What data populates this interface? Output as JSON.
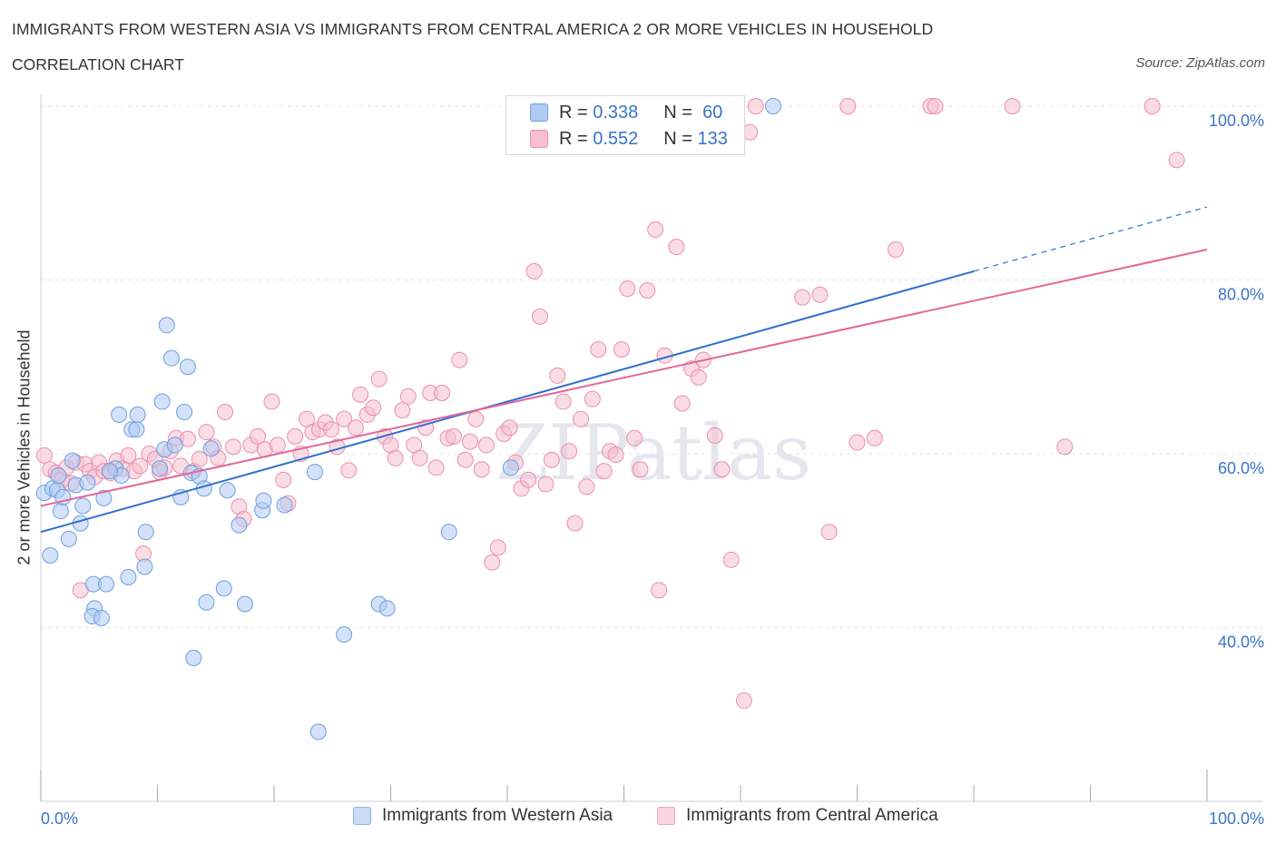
{
  "title": "IMMIGRANTS FROM WESTERN ASIA VS IMMIGRANTS FROM CENTRAL AMERICA 2 OR MORE VEHICLES IN HOUSEHOLD",
  "subtitle": "CORRELATION CHART",
  "source": "Source: ZipAtlas.com",
  "watermark": "ZIPatlas",
  "legend": {
    "western_asia": {
      "r_label": "R =",
      "r": "0.338",
      "n_label": "N =",
      "n": "60"
    },
    "central_america": {
      "r_label": "R =",
      "r": "0.552",
      "n_label": "N =",
      "n": "133"
    }
  },
  "bottom_legend": {
    "western_asia": "Immigrants from Western Asia",
    "central_america": "Immigrants from Central America"
  },
  "colors": {
    "blue_fill": "#aecbf2",
    "blue_stroke": "#6f9ee0",
    "blue_line": "#2f6fce",
    "pink_fill": "#f6c0d0",
    "pink_stroke": "#ec8fac",
    "pink_line": "#e2679a",
    "tick_label": "#3a74c8",
    "grid": "#e4e4e4"
  },
  "chart_data": {
    "type": "scatter",
    "xlabel": "",
    "ylabel": "2 or more Vehicles in Household",
    "xlim": [
      0,
      100
    ],
    "ylim": [
      20,
      100
    ],
    "x_tick_labels": [
      "0.0%",
      "100.0%"
    ],
    "y_ticks": [
      40,
      60,
      80,
      100
    ],
    "y_tick_labels": [
      "40.0%",
      "60.0%",
      "80.0%",
      "100.0%"
    ],
    "grid": true,
    "series": [
      {
        "name": "Immigrants from Western Asia",
        "color": "#aecbf2",
        "trend": {
          "x0": 0,
          "y0": 51.0,
          "x1": 80,
          "y1": 81.0,
          "dash_to": 100,
          "dash_y": 88.4
        },
        "points": [
          [
            0.3,
            55.5
          ],
          [
            0.8,
            48.3
          ],
          [
            1.0,
            56.0
          ],
          [
            1.4,
            55.8
          ],
          [
            1.7,
            53.4
          ],
          [
            1.9,
            55.0
          ],
          [
            2.4,
            50.2
          ],
          [
            2.7,
            59.2
          ],
          [
            3.0,
            56.4
          ],
          [
            3.4,
            52.0
          ],
          [
            3.6,
            54.0
          ],
          [
            4.0,
            56.7
          ],
          [
            4.5,
            45.0
          ],
          [
            4.6,
            42.2
          ],
          [
            4.4,
            41.3
          ],
          [
            5.2,
            41.1
          ],
          [
            5.4,
            54.9
          ],
          [
            5.6,
            45.0
          ],
          [
            6.4,
            58.3
          ],
          [
            6.7,
            64.5
          ],
          [
            6.9,
            57.5
          ],
          [
            7.5,
            45.8
          ],
          [
            7.8,
            62.8
          ],
          [
            8.2,
            62.8
          ],
          [
            8.3,
            64.5
          ],
          [
            8.9,
            47.0
          ],
          [
            9.0,
            51.0
          ],
          [
            10.2,
            58.3
          ],
          [
            10.4,
            66.0
          ],
          [
            10.6,
            60.5
          ],
          [
            10.8,
            74.8
          ],
          [
            11.2,
            71.0
          ],
          [
            11.5,
            61.0
          ],
          [
            12.0,
            55.0
          ],
          [
            12.3,
            64.8
          ],
          [
            12.6,
            70.0
          ],
          [
            12.9,
            57.8
          ],
          [
            13.1,
            36.5
          ],
          [
            13.6,
            57.4
          ],
          [
            14.0,
            56.0
          ],
          [
            14.2,
            42.9
          ],
          [
            14.6,
            60.6
          ],
          [
            15.7,
            44.5
          ],
          [
            16.0,
            55.8
          ],
          [
            17.0,
            51.8
          ],
          [
            17.5,
            42.7
          ],
          [
            19.0,
            53.5
          ],
          [
            19.1,
            54.6
          ],
          [
            20.9,
            54.1
          ],
          [
            23.5,
            57.9
          ],
          [
            23.8,
            28.0
          ],
          [
            26.0,
            39.2
          ],
          [
            29.0,
            42.7
          ],
          [
            29.7,
            42.2
          ],
          [
            35.0,
            51.0
          ],
          [
            40.3,
            58.4
          ],
          [
            42.5,
            100.0
          ],
          [
            62.8,
            100.0
          ],
          [
            1.5,
            57.5
          ],
          [
            5.9,
            58.0
          ]
        ]
      },
      {
        "name": "Immigrants from Central America",
        "color": "#f6c0d0",
        "trend": {
          "x0": 0,
          "y0": 54.0,
          "x1": 100,
          "y1": 83.5
        },
        "points": [
          [
            0.3,
            59.8
          ],
          [
            0.8,
            58.2
          ],
          [
            1.3,
            57.8
          ],
          [
            1.8,
            57.0
          ],
          [
            2.2,
            58.4
          ],
          [
            2.6,
            56.6
          ],
          [
            3.0,
            59.0
          ],
          [
            3.4,
            44.3
          ],
          [
            3.8,
            58.8
          ],
          [
            4.2,
            58.0
          ],
          [
            4.6,
            57.3
          ],
          [
            5.0,
            59.0
          ],
          [
            5.4,
            58.0
          ],
          [
            6.0,
            57.8
          ],
          [
            6.5,
            59.2
          ],
          [
            7.0,
            58.3
          ],
          [
            7.5,
            59.8
          ],
          [
            8.0,
            58.0
          ],
          [
            8.5,
            58.6
          ],
          [
            8.8,
            48.5
          ],
          [
            9.3,
            60.0
          ],
          [
            9.8,
            59.4
          ],
          [
            10.2,
            57.9
          ],
          [
            10.6,
            58.4
          ],
          [
            11.1,
            60.3
          ],
          [
            11.6,
            61.8
          ],
          [
            12.0,
            58.6
          ],
          [
            12.6,
            61.7
          ],
          [
            13.1,
            58.0
          ],
          [
            13.6,
            59.4
          ],
          [
            14.2,
            62.5
          ],
          [
            14.8,
            60.8
          ],
          [
            15.2,
            59.5
          ],
          [
            15.8,
            64.8
          ],
          [
            16.5,
            60.8
          ],
          [
            17.0,
            53.9
          ],
          [
            17.4,
            52.5
          ],
          [
            18.0,
            61.0
          ],
          [
            18.6,
            62.0
          ],
          [
            19.2,
            60.5
          ],
          [
            19.8,
            66.0
          ],
          [
            20.3,
            61.0
          ],
          [
            20.8,
            57.0
          ],
          [
            21.2,
            54.3
          ],
          [
            21.8,
            62.0
          ],
          [
            22.3,
            60.0
          ],
          [
            22.8,
            64.0
          ],
          [
            23.3,
            62.5
          ],
          [
            23.9,
            62.8
          ],
          [
            24.4,
            63.6
          ],
          [
            24.9,
            62.8
          ],
          [
            25.4,
            60.8
          ],
          [
            26.0,
            64.0
          ],
          [
            26.4,
            58.1
          ],
          [
            27.0,
            63.0
          ],
          [
            27.4,
            66.8
          ],
          [
            28.0,
            64.5
          ],
          [
            28.5,
            65.3
          ],
          [
            29.0,
            68.6
          ],
          [
            29.5,
            62.0
          ],
          [
            30.0,
            61.0
          ],
          [
            30.4,
            59.5
          ],
          [
            31.0,
            65.0
          ],
          [
            31.5,
            66.6
          ],
          [
            32.0,
            61.0
          ],
          [
            32.5,
            59.5
          ],
          [
            33.0,
            63.0
          ],
          [
            33.4,
            67.0
          ],
          [
            33.9,
            58.4
          ],
          [
            34.4,
            67.0
          ],
          [
            34.9,
            61.8
          ],
          [
            35.4,
            62.0
          ],
          [
            35.9,
            70.8
          ],
          [
            36.4,
            59.3
          ],
          [
            36.8,
            61.4
          ],
          [
            37.3,
            64.0
          ],
          [
            37.8,
            58.2
          ],
          [
            38.2,
            61.0
          ],
          [
            38.7,
            47.5
          ],
          [
            39.2,
            49.2
          ],
          [
            39.7,
            62.3
          ],
          [
            40.2,
            63.0
          ],
          [
            40.7,
            59.0
          ],
          [
            41.2,
            56.0
          ],
          [
            41.8,
            57.0
          ],
          [
            42.3,
            81.0
          ],
          [
            42.8,
            75.8
          ],
          [
            43.3,
            56.5
          ],
          [
            43.8,
            59.3
          ],
          [
            44.3,
            69.0
          ],
          [
            44.8,
            66.0
          ],
          [
            45.3,
            60.3
          ],
          [
            45.8,
            52.0
          ],
          [
            46.3,
            64.0
          ],
          [
            46.8,
            56.2
          ],
          [
            47.3,
            66.3
          ],
          [
            47.8,
            72.0
          ],
          [
            48.3,
            58.0
          ],
          [
            48.8,
            60.3
          ],
          [
            49.3,
            59.9
          ],
          [
            49.8,
            72.0
          ],
          [
            50.3,
            79.0
          ],
          [
            50.9,
            61.8
          ],
          [
            51.4,
            58.2
          ],
          [
            52.0,
            78.8
          ],
          [
            52.7,
            85.8
          ],
          [
            53.0,
            44.3
          ],
          [
            53.5,
            71.3
          ],
          [
            54.5,
            83.8
          ],
          [
            55.0,
            65.8
          ],
          [
            55.8,
            69.8
          ],
          [
            56.4,
            68.8
          ],
          [
            56.8,
            70.8
          ],
          [
            57.8,
            62.1
          ],
          [
            58.4,
            58.2
          ],
          [
            59.2,
            47.8
          ],
          [
            60.3,
            31.6
          ],
          [
            60.8,
            97.0
          ],
          [
            61.3,
            100.0
          ],
          [
            65.3,
            78.0
          ],
          [
            66.8,
            78.3
          ],
          [
            67.6,
            51.0
          ],
          [
            69.2,
            100.0
          ],
          [
            70.0,
            61.3
          ],
          [
            71.5,
            61.8
          ],
          [
            73.3,
            83.5
          ],
          [
            76.3,
            100.0
          ],
          [
            76.7,
            100.0
          ],
          [
            83.3,
            100.0
          ],
          [
            87.8,
            60.8
          ],
          [
            95.3,
            100.0
          ],
          [
            97.4,
            93.8
          ],
          [
            58.0,
            100.0
          ]
        ]
      }
    ]
  }
}
